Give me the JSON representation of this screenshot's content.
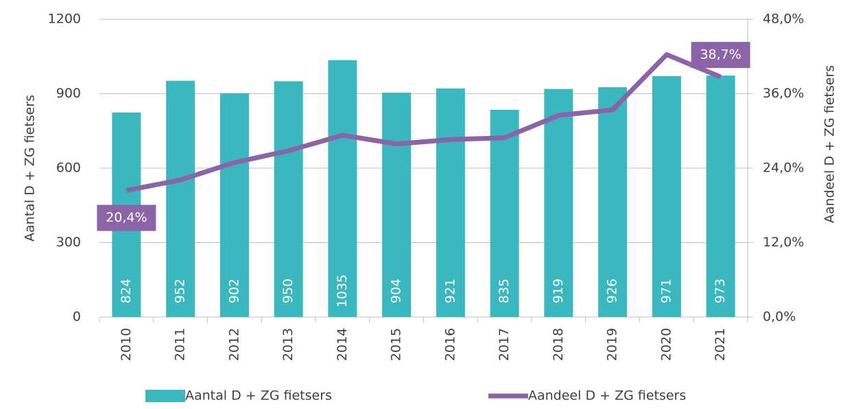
{
  "chart_data": {
    "type": "bar",
    "ylabel": "Aantal D + ZG fietsers",
    "y2label": "Aandeel D + ZG fietsers",
    "categories": [
      "2010",
      "2011",
      "2012",
      "2013",
      "2014",
      "2015",
      "2016",
      "2017",
      "2018",
      "2019",
      "2020",
      "2021"
    ],
    "series": [
      {
        "name": "Aantal D + ZG fietsers",
        "type": "bar",
        "color": "#3bb8bf",
        "values": [
          824,
          952,
          902,
          950,
          1035,
          904,
          921,
          835,
          919,
          926,
          971,
          973
        ]
      },
      {
        "name": "Aandeel D + ZG fietsers",
        "type": "line",
        "axis": "y2",
        "color": "#8b64a8",
        "values": [
          20.4,
          22.1,
          24.9,
          26.8,
          29.3,
          27.9,
          28.6,
          28.9,
          32.5,
          33.4,
          42.3,
          38.7
        ],
        "value_labels": [
          "20,4%",
          null,
          null,
          null,
          null,
          null,
          null,
          null,
          null,
          null,
          null,
          "38,7%"
        ]
      }
    ],
    "ylim": [
      0,
      1200
    ],
    "yticks": [
      0,
      300,
      600,
      900,
      1200
    ],
    "y2lim": [
      0,
      48
    ],
    "y2ticks": [
      {
        "value": 0,
        "label": "0,0%"
      },
      {
        "value": 12,
        "label": "12,0%"
      },
      {
        "value": 24,
        "label": "24,0%"
      },
      {
        "value": 36,
        "label": "36,0%"
      },
      {
        "value": 48,
        "label": "48,0%"
      }
    ],
    "grid": true,
    "legend": "bottom"
  }
}
